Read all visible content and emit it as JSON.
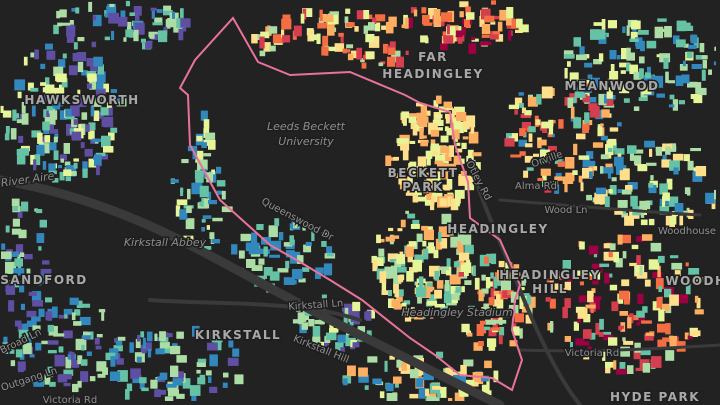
{
  "map": {
    "labels": {
      "far_headingley_1": "FAR",
      "far_headingley_2": "HEADINGLEY",
      "meanwood": "MEANWOOD",
      "hawksworth": "HAWKSWORTH",
      "leeds_beckett_1": "Leeds Beckett",
      "leeds_beckett_2": "University",
      "beckett_park_1": "BECKETT",
      "beckett_park_2": "PARK",
      "river_aire": "River Aire",
      "kirkstall_abbey": "Kirkstall Abbey",
      "queenswood": "Queenswood Dr",
      "headingley": "HEADINGLEY",
      "headingley_hill_1": "HEADINGLEY",
      "headingley_hill_2": "HILL",
      "sandford": "SANDFORD",
      "kirkstall": "KIRKSTALL",
      "kirkstall_ln": "Kirkstall Ln",
      "kirkstall_hill": "Kirkstall Hill",
      "headingley_stadium": "Headingley Stadium",
      "broad_ln": "Broad Ln",
      "outgang_ln": "Outgang Ln",
      "victoria_rd_w": "Victoria Rd",
      "victoria_rd": "Victoria Rd",
      "alma_rd": "Alma Rd",
      "wood_ln": "Wood Ln",
      "otley_rd": "Otley Rd",
      "woodhouse": "Woodhouse",
      "woodh_2": "WOODH",
      "orville": "Orville",
      "hyde_park": "HYDE PARK"
    },
    "colors": {
      "background": "#222222",
      "road": "#3a3a3a",
      "boundary": "#e8739a",
      "palette": [
        "#5e4fa2",
        "#3288bd",
        "#66c2a5",
        "#abdda4",
        "#e6f598",
        "#fee08b",
        "#fdae61",
        "#f46d43",
        "#d53e4f",
        "#9e0142"
      ]
    }
  }
}
